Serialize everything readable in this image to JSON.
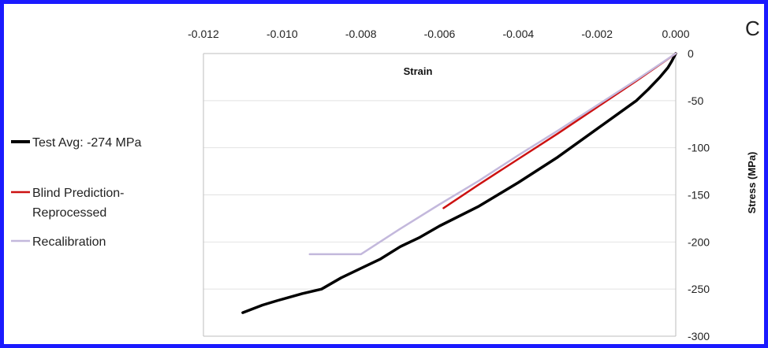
{
  "panel_label": "C",
  "chart_data": {
    "type": "line",
    "xlabel": "Strain",
    "ylabel": "Stress (MPa)",
    "xlim": [
      -0.012,
      0.0
    ],
    "ylim": [
      -300,
      0
    ],
    "x_ticks": [
      "-0.012",
      "-0.010",
      "-0.008",
      "-0.006",
      "-0.004",
      "-0.002",
      "0.000"
    ],
    "x_tick_values": [
      -0.012,
      -0.01,
      -0.008,
      -0.006,
      -0.004,
      -0.002,
      0.0
    ],
    "y_ticks": [
      "0",
      "-50",
      "-100",
      "-150",
      "-200",
      "-250",
      "-300"
    ],
    "y_tick_values": [
      0,
      -50,
      -100,
      -150,
      -200,
      -250,
      -300
    ],
    "grid": true,
    "x_axis_position": "top",
    "y_axis_position": "right",
    "legend_position": "left",
    "series": [
      {
        "name": "Test Avg: -274 MPa",
        "color": "#000000",
        "x": [
          0.0,
          -0.0001,
          -0.0002,
          -0.0004,
          -0.0007,
          -0.001,
          -0.0015,
          -0.002,
          -0.003,
          -0.004,
          -0.005,
          -0.006,
          -0.0065,
          -0.007,
          -0.0075,
          -0.008,
          -0.0085,
          -0.009,
          -0.0095,
          -0.0101,
          -0.0105,
          -0.011
        ],
        "y": [
          0,
          -8,
          -15,
          -25,
          -38,
          -50,
          -65,
          -80,
          -110,
          -137,
          -162,
          -183,
          -195,
          -205,
          -218,
          -228,
          -238,
          -250,
          -255,
          -262,
          -267,
          -275
        ]
      },
      {
        "name": "Blind Prediction-\nReprocessed",
        "color": "#cc1111",
        "x": [
          0.0,
          -0.001,
          -0.002,
          -0.003,
          -0.004,
          -0.005,
          -0.0059
        ],
        "y": [
          0,
          -29,
          -57,
          -85,
          -112,
          -139,
          -164
        ]
      },
      {
        "name": "Recalibration",
        "color": "#c3b8dc",
        "x": [
          0.0,
          -0.001,
          -0.002,
          -0.003,
          -0.004,
          -0.005,
          -0.006,
          -0.007,
          -0.008,
          -0.0093
        ],
        "y": [
          0,
          -28,
          -55,
          -82,
          -108,
          -135,
          -160,
          -186,
          -213,
          -213
        ]
      }
    ]
  }
}
